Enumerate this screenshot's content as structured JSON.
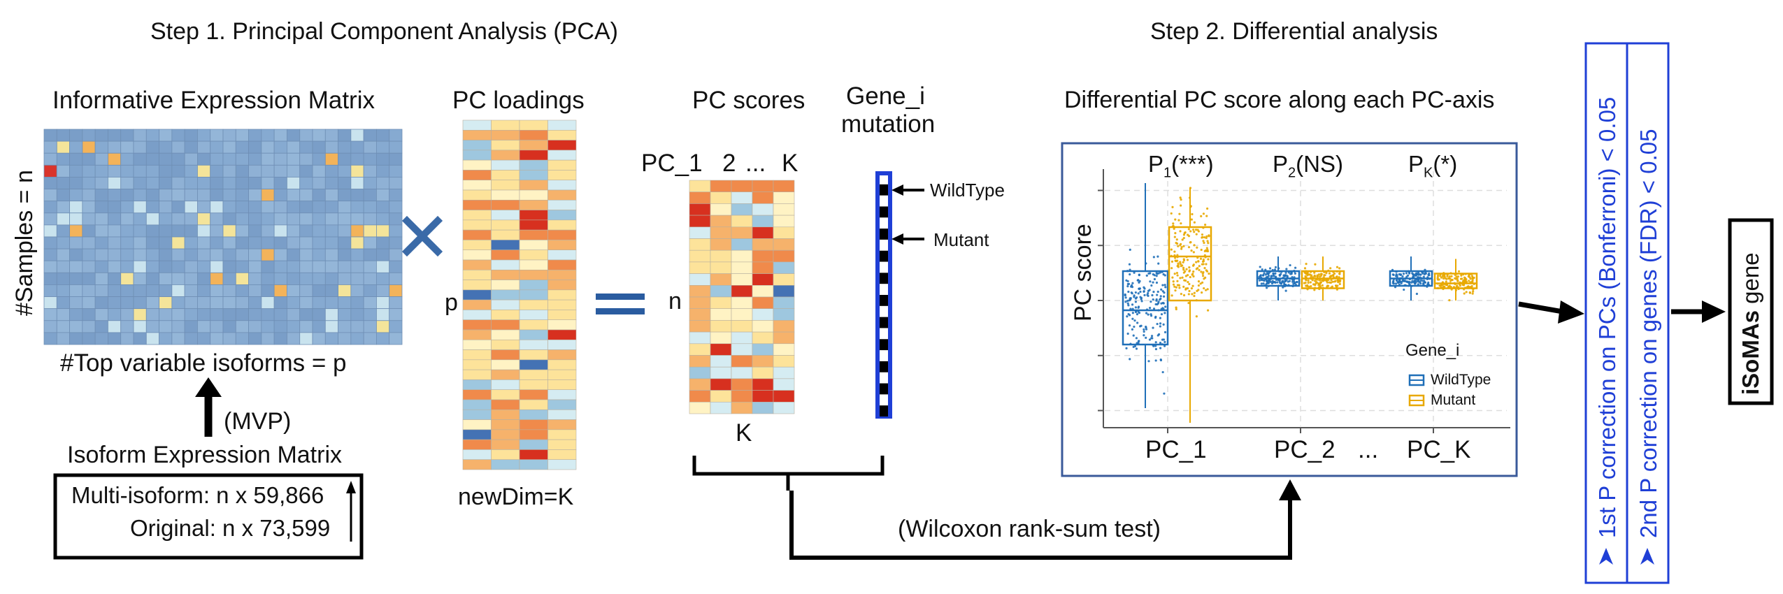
{
  "step1": {
    "title": "Step 1. Principal Component Analysis (PCA)"
  },
  "step2": {
    "title": "Step 2. Differential analysis"
  },
  "expr_matrix": {
    "title": "Informative Expression Matrix",
    "row_label": "#Samples = n",
    "col_label": "#Top variable isoforms = p",
    "rows": 18,
    "cols": 28,
    "highlight_colors": [
      "#d9342b",
      "#f3b35a",
      "#f4e49a",
      "#c9e3ee"
    ]
  },
  "mvp": {
    "label": "(MVP)"
  },
  "isoform_matrix": {
    "title": "Isoform Expression Matrix",
    "line1": "Multi-isoform: n x 59,866",
    "line2": "Original: n x 73,599"
  },
  "times_symbol": "×",
  "equals_symbol": "=",
  "loadings": {
    "title": "PC loadings",
    "row_label": "p",
    "footer": "newDim=K",
    "rows": 35,
    "cols": 4
  },
  "scores": {
    "title": "PC scores",
    "header_1": "PC_1",
    "header_2": "2",
    "header_dots": "...",
    "header_k": "K",
    "row_label": "n",
    "footer": "K",
    "rows": 20,
    "cols": 5
  },
  "mutation": {
    "title_line1": "Gene_i",
    "title_line2": "mutation",
    "wildtype_label": "WildType",
    "mutant_label": "Mutant",
    "bar_color": "#1f3fd6",
    "segments": 22
  },
  "wilcoxon": {
    "label": "(Wilcoxon rank-sum test)"
  },
  "diff_panel": {
    "title": "Differential PC score along each PC-axis",
    "border_color": "#3a5a9a",
    "ylabel": "PC score",
    "pvals": [
      {
        "letter": "P",
        "sub": "1",
        "sig": "(***)"
      },
      {
        "letter": "P",
        "sub": "2",
        "sig": "(NS)"
      },
      {
        "letter": "P",
        "sub": "K",
        "sig": "(*)"
      }
    ],
    "xlabels": [
      "PC_1",
      "PC_2",
      "...",
      "PC_K"
    ],
    "legend": {
      "title": "Gene_i",
      "items": [
        "WildType",
        "Mutant"
      ]
    },
    "colors": {
      "wildtype": "#1f6fb8",
      "mutant": "#e8a800"
    }
  },
  "chart_data": {
    "type": "box",
    "title": "",
    "xlabel": "",
    "ylabel": "PC score",
    "categories": [
      "PC_1",
      "PC_2",
      "PC_K"
    ],
    "series": [
      {
        "name": "WildType",
        "boxes": [
          {
            "min": 0.06,
            "q1": 0.32,
            "median": 0.46,
            "q3": 0.62,
            "max": 0.98
          },
          {
            "min": 0.5,
            "q1": 0.56,
            "median": 0.59,
            "q3": 0.62,
            "max": 0.68
          },
          {
            "min": 0.5,
            "q1": 0.56,
            "median": 0.59,
            "q3": 0.62,
            "max": 0.68
          }
        ]
      },
      {
        "name": "Mutant",
        "boxes": [
          {
            "min": 0.0,
            "q1": 0.5,
            "median": 0.68,
            "q3": 0.8,
            "max": 0.96
          },
          {
            "min": 0.5,
            "q1": 0.55,
            "median": 0.59,
            "q3": 0.62,
            "max": 0.68
          },
          {
            "min": 0.5,
            "q1": 0.55,
            "median": 0.57,
            "q3": 0.61,
            "max": 0.67
          }
        ]
      }
    ],
    "significance": [
      "***",
      "NS",
      "*"
    ],
    "ylim": [
      0,
      1
    ],
    "grid": true,
    "legend_position": "right"
  },
  "corrections": {
    "label1": "1st P correction on PCs (Bonferroni) < 0.05",
    "label2": "2nd P correction on genes (FDR) < 0.05",
    "color": "#1f3fd6"
  },
  "result": {
    "bold": "iSoMAs",
    "rest": " gene"
  }
}
